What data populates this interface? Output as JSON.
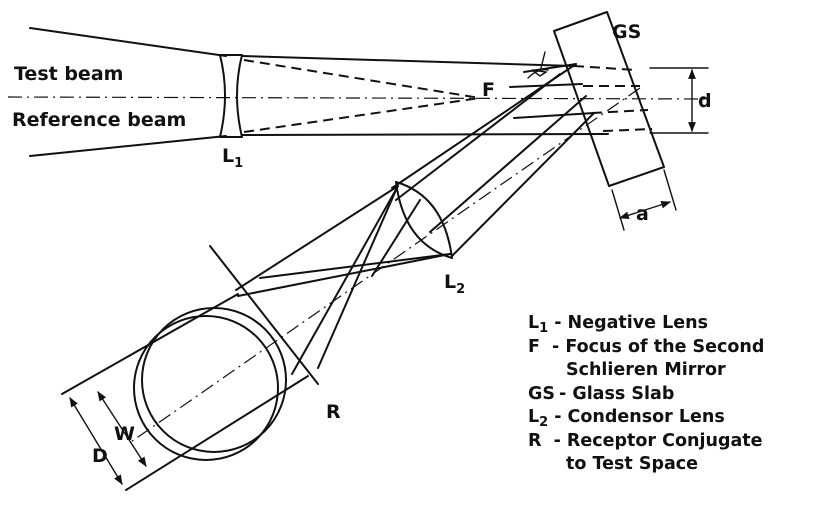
{
  "labels": {
    "test_beam": "Test beam",
    "reference_beam": "Reference beam",
    "l1_main": "L",
    "l1_sub": "1",
    "f": "F",
    "gs": "GS",
    "d_small": "d",
    "a": "a",
    "l2_main": "L",
    "l2_sub": "2",
    "r": "R",
    "d_big": "D",
    "w": "W"
  },
  "legend": [
    {
      "sym": "L",
      "sub": "1",
      "text": "- Negative  Lens"
    },
    {
      "sym": "F",
      "sub": "",
      "text": " - Focus of the Second"
    },
    {
      "sym": "",
      "sub": "",
      "text": "Schlieren  Mirror"
    },
    {
      "sym": "GS",
      "sub": "",
      "text": "- Glass  Slab"
    },
    {
      "sym": "L",
      "sub": "2",
      "text": "- Condensor  Lens"
    },
    {
      "sym": "R",
      "sub": "",
      "text": " - Receptor  Conjugate"
    },
    {
      "sym": "",
      "sub": "",
      "text": "to Test Space"
    }
  ]
}
